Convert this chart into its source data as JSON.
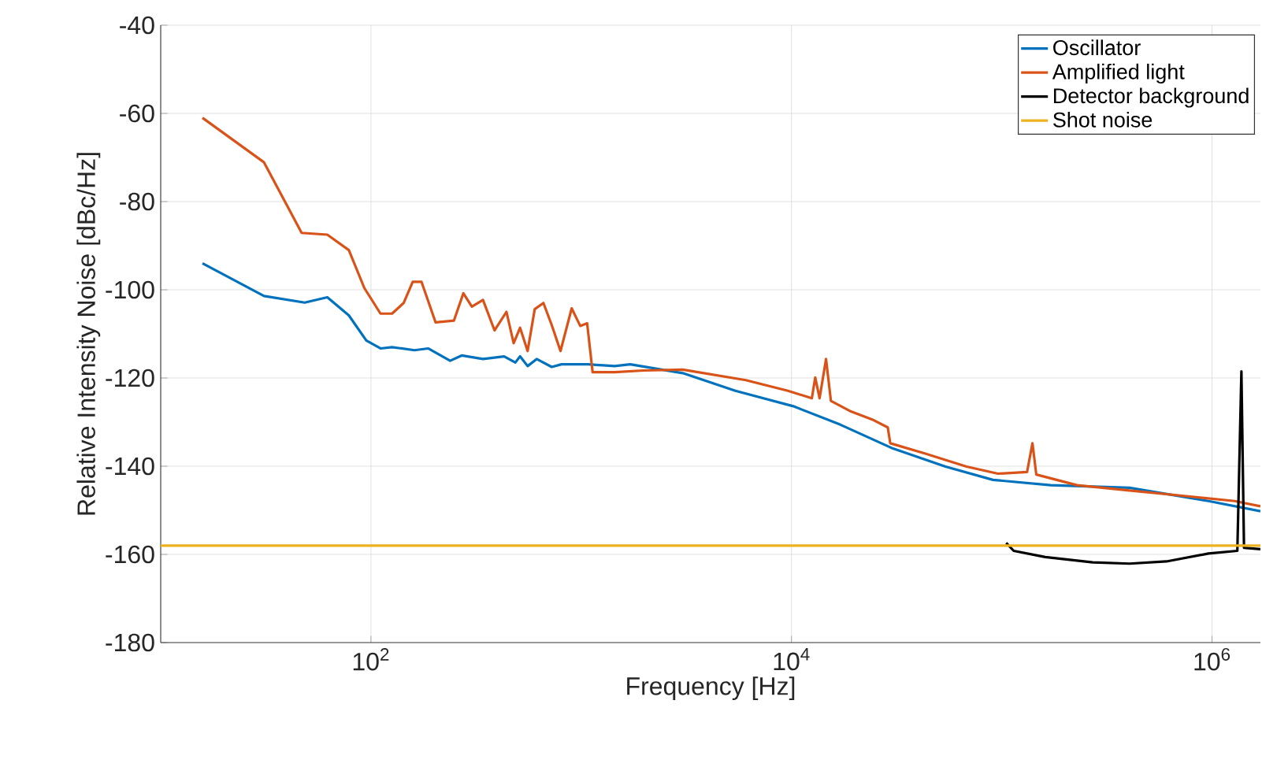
{
  "chart_data": {
    "type": "line",
    "xlabel": "Frequency [Hz]",
    "ylabel": "Relative Intensity Noise [dBc/Hz]",
    "log": "x",
    "grid": true,
    "legend": "top right",
    "xlim": [
      10,
      1700000
    ],
    "ylim": [
      -180,
      -40
    ],
    "xticks": [
      {
        "value": 100,
        "label": "10$^{2}$"
      },
      {
        "value": 10000,
        "label": "10$^{4}$"
      },
      {
        "value": 1000000,
        "label": "10$^{6}$"
      }
    ],
    "yticks": [
      -180,
      -160,
      -140,
      -120,
      -100,
      -80,
      -60,
      -40
    ],
    "series": [
      {
        "name": "Oscillator",
        "color": "#0072bd",
        "x": [
          15.8,
          31,
          48.4,
          62,
          78.5,
          95,
          111,
          126,
          161,
          187,
          238,
          270,
          341,
          430,
          486,
          512,
          556,
          614,
          724,
          806,
          1078,
          1441,
          1710,
          3041,
          5408,
          10200,
          17100,
          30400,
          54000,
          90800,
          171000,
          405000,
          962000,
          1700000
        ],
        "values": [
          -94,
          -101.4,
          -102.9,
          -101.7,
          -105.8,
          -111.5,
          -113.3,
          -113,
          -113.7,
          -113.3,
          -116.1,
          -114.9,
          -115.7,
          -115.1,
          -116.5,
          -115.1,
          -117.3,
          -115.7,
          -117.5,
          -116.9,
          -116.9,
          -117.3,
          -116.9,
          -118.9,
          -122.9,
          -126.4,
          -130.6,
          -136,
          -140.1,
          -143.1,
          -144.3,
          -144.9,
          -147.9,
          -150.2
        ]
      },
      {
        "name": "Amplified light",
        "color": "#d95319",
        "x": [
          15.8,
          31,
          46.8,
          62,
          78.5,
          93,
          111,
          126,
          143,
          158,
          174,
          203,
          248,
          275,
          302,
          341,
          387,
          441,
          477,
          512,
          556,
          601,
          661,
          724,
          797,
          901,
          989,
          1067,
          1133,
          1441,
          1972,
          3041,
          6067,
          9616,
          12500,
          12970,
          13600,
          14600,
          15400,
          19200,
          24200,
          28700,
          29500,
          43000,
          68000,
          96000,
          132000,
          140000,
          146000,
          228000,
          405000,
          721000,
          1280000,
          1700000
        ],
        "values": [
          -61,
          -71.1,
          -87.1,
          -87.5,
          -91,
          -99.6,
          -105.4,
          -105.4,
          -103,
          -98.2,
          -98.2,
          -107.4,
          -107,
          -100.8,
          -103.8,
          -102.3,
          -109.2,
          -105,
          -112.1,
          -108.6,
          -113.9,
          -104.4,
          -103,
          -108,
          -113.9,
          -104.2,
          -108.2,
          -107.6,
          -118.7,
          -118.7,
          -118.3,
          -118.1,
          -120.5,
          -122.9,
          -124.6,
          -119.9,
          -124.6,
          -115.7,
          -125.2,
          -127.6,
          -129.4,
          -131.2,
          -134.8,
          -137.1,
          -140.1,
          -141.7,
          -141.3,
          -134.8,
          -141.9,
          -144.3,
          -145.5,
          -146.7,
          -147.9,
          -149.1
        ]
      },
      {
        "name": "Detector background",
        "color": "#000000",
        "x": [
          105000,
          114000,
          161000,
          271000,
          405000,
          607000,
          962000,
          1320000,
          1380000,
          1420000,
          1700000
        ],
        "values": [
          -157.4,
          -159.2,
          -160.6,
          -161.8,
          -162.1,
          -161.6,
          -159.8,
          -159.2,
          -118.5,
          -158.5,
          -158.8
        ]
      },
      {
        "name": "Shot noise",
        "color": "#edb120",
        "x": [
          10,
          1700000
        ],
        "values": [
          -158,
          -158
        ]
      }
    ]
  }
}
